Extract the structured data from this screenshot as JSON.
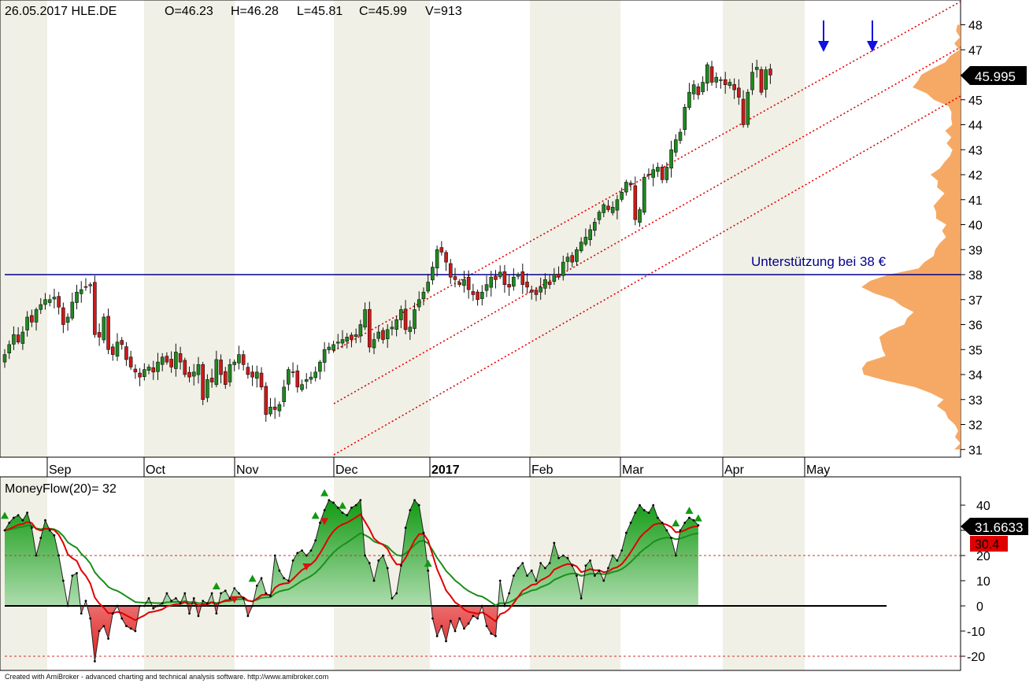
{
  "header": {
    "date": "26.05.2017",
    "symbol": "HLE.DE",
    "open": "O=46.23",
    "high": "H=46.28",
    "low": "L=45.81",
    "close": "C=45.99",
    "volume": "V=913"
  },
  "annotation": {
    "support_text": "Unterstützung bei 38 €"
  },
  "price_label": "45.995",
  "indicator": {
    "title": "MoneyFlow(20)= 32",
    "value_label": "31.6633",
    "signal_label": "30.4"
  },
  "footer": "Created with AmiBroker - advanced charting and technical analysis software. http://www.amibroker.com",
  "colors": {
    "up": "#1e8a1e",
    "down": "#d01818",
    "support": "#00008b",
    "channel": "#e00000",
    "arrow": "#1010e0",
    "volume_profile": "#f5a45c",
    "signal": "#e00000",
    "mfi_smooth": "#1a8f1a"
  },
  "chart_data": [
    {
      "type": "candlestick",
      "title": "26.05.2017 HLE.DE",
      "x_axis_labels": [
        "Sep",
        "Oct",
        "Nov",
        "Dec",
        "2017",
        "Feb",
        "Mar",
        "Apr",
        "May"
      ],
      "y_ticks": [
        31,
        32,
        33,
        34,
        35,
        36,
        37,
        38,
        39,
        40,
        41,
        42,
        43,
        44,
        45,
        46,
        47,
        48
      ],
      "ylim": [
        30.5,
        48.5
      ],
      "last_ohlc": {
        "open": 46.23,
        "high": 46.28,
        "low": 45.81,
        "close": 45.99,
        "volume": 913
      },
      "last_price": 45.995,
      "support_level": 38,
      "closes": [
        34.8,
        35.2,
        35.6,
        35.3,
        35.7,
        36.3,
        36.1,
        36.6,
        36.8,
        37.0,
        37.0,
        37.1,
        36.7,
        36.0,
        36.3,
        36.9,
        37.3,
        37.4,
        37.5,
        37.6,
        35.6,
        35.5,
        36.3,
        35.0,
        34.8,
        35.3,
        35.2,
        34.6,
        34.3,
        34.1,
        33.9,
        34.2,
        34.3,
        34.1,
        34.5,
        34.7,
        34.5,
        34.3,
        34.9,
        34.5,
        34.0,
        33.9,
        34.1,
        34.4,
        33.0,
        33.8,
        33.7,
        34.6,
        34.0,
        33.6,
        34.4,
        34.5,
        34.8,
        34.4,
        34.0,
        33.9,
        34.1,
        33.5,
        32.4,
        32.7,
        32.6,
        32.8,
        33.5,
        34.2,
        34.1,
        33.5,
        33.6,
        33.8,
        33.9,
        34.1,
        34.5,
        35.0,
        35.1,
        35.2,
        35.3,
        35.4,
        35.5,
        35.4,
        35.6,
        36.0,
        36.6,
        35.1,
        35.4,
        35.7,
        35.4,
        35.8,
        35.9,
        36.2,
        36.6,
        35.8,
        35.9,
        36.6,
        37.0,
        37.3,
        37.7,
        38.3,
        39.0,
        38.9,
        38.5,
        37.9,
        37.8,
        37.6,
        37.8,
        37.4,
        37.2,
        37.0,
        37.3,
        37.6,
        37.9,
        37.8,
        38.1,
        37.6,
        37.5,
        37.9,
        38.0,
        37.6,
        37.5,
        37.3,
        37.2,
        37.5,
        37.8,
        37.6,
        38.0,
        37.9,
        38.5,
        38.7,
        38.5,
        39.0,
        39.3,
        39.5,
        39.8,
        40.1,
        40.5,
        40.8,
        40.6,
        40.7,
        41.0,
        41.3,
        41.7,
        41.6,
        40.2,
        40.6,
        41.9,
        42.0,
        42.2,
        42.3,
        41.8,
        42.3,
        43.0,
        43.4,
        43.7,
        44.7,
        45.3,
        45.6,
        45.2,
        45.7,
        46.4,
        45.7,
        45.9,
        45.8,
        45.6,
        45.7,
        45.4,
        45.1,
        44.0,
        45.3,
        46.1,
        46.3,
        45.3,
        46.2,
        45.99
      ],
      "volume_profile_range": [
        31,
        48
      ]
    },
    {
      "type": "line",
      "title": "MoneyFlow(20)= 32",
      "y_ticks": [
        -20,
        -10,
        0,
        10,
        20,
        30,
        40
      ],
      "ylim": [
        -22,
        46
      ],
      "reference_lines": [
        0,
        20,
        -20
      ],
      "last_value": 31.6633,
      "signal_value": 30.4,
      "values": [
        30,
        33,
        35,
        36,
        34,
        37,
        31,
        20,
        27,
        34,
        30,
        28,
        20,
        10,
        0,
        12,
        13,
        -3,
        2,
        -5,
        -22,
        -10,
        -8,
        -13,
        -3,
        0,
        -5,
        -8,
        -9,
        -10,
        0,
        0,
        3,
        -1,
        0,
        1,
        5,
        2,
        3,
        1,
        5,
        -3,
        3,
        -4,
        2,
        1,
        5,
        -3,
        5,
        6,
        3,
        7,
        5,
        3,
        -4,
        0,
        8,
        11,
        5,
        4,
        20,
        14,
        11,
        10,
        18,
        21,
        22,
        20,
        22,
        26,
        33,
        38,
        42,
        41,
        39,
        37,
        36,
        39,
        40,
        42,
        20,
        17,
        10,
        18,
        20,
        15,
        3,
        5,
        16,
        31,
        38,
        42,
        40,
        29,
        14,
        -5,
        -12,
        -8,
        -14,
        -6,
        -10,
        -5,
        -9,
        -7,
        -4,
        -5,
        0,
        -8,
        -11,
        -12,
        10,
        0,
        5,
        12,
        15,
        17,
        12,
        14,
        10,
        17,
        15,
        17,
        25,
        19,
        20,
        19,
        16,
        12,
        3,
        16,
        18,
        12,
        14,
        10,
        15,
        20,
        18,
        22,
        29,
        33,
        37,
        40,
        38,
        37,
        40,
        35,
        33,
        30,
        27,
        20,
        30,
        33,
        35,
        34,
        32
      ]
    }
  ]
}
